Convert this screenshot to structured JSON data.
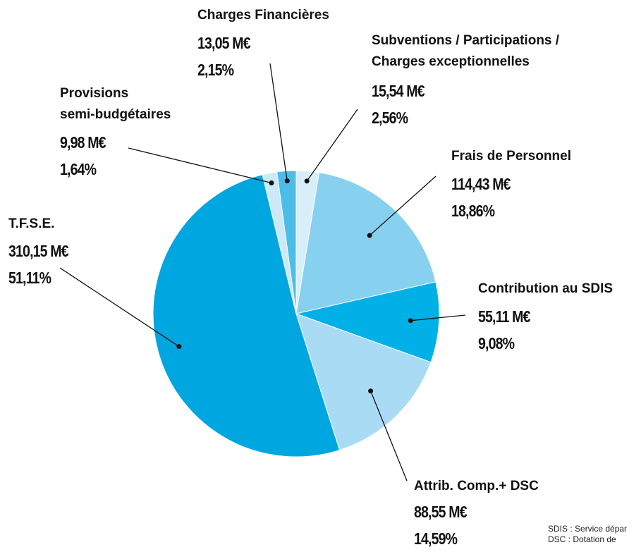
{
  "chart_data": {
    "type": "pie",
    "categories": [
      "Subventions / Participations /\nCharges exceptionnelles",
      "Frais de Personnel",
      "Contribution au SDIS",
      "Attrib. Comp.+ DSC",
      "T.F.S.E.",
      "Provisions\nsemi-budgétaires",
      "Charges Financières"
    ],
    "values": [
      2.56,
      18.86,
      9.08,
      14.59,
      51.11,
      1.64,
      2.15
    ],
    "value_labels": [
      "2,56%",
      "18,86%",
      "9,08%",
      "14,59%",
      "51,11%",
      "1,64%",
      "2,15%"
    ],
    "amount_labels": [
      "15,54 M€",
      "114,43 M€",
      "55,11 M€",
      "88,55 M€",
      "310,15 M€",
      "9,98 M€",
      "13,05 M€"
    ],
    "colors": [
      "#d8effa",
      "#88d0ef",
      "#00b0e6",
      "#a9dcf4",
      "#00a6e0",
      "#cbe9f8",
      "#4cbde9"
    ],
    "footnotes": [
      "SDIS : Service dépar",
      "DSC : Dotation de"
    ]
  }
}
